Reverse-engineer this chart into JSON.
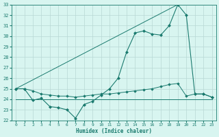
{
  "xlabel": "Humidex (Indice chaleur)",
  "x": [
    0,
    1,
    2,
    3,
    4,
    5,
    6,
    7,
    8,
    9,
    10,
    11,
    12,
    13,
    14,
    15,
    16,
    17,
    18,
    19,
    20,
    21,
    22,
    23
  ],
  "line_straight": [
    25.0,
    null,
    null,
    null,
    null,
    null,
    null,
    null,
    null,
    null,
    null,
    null,
    null,
    null,
    null,
    null,
    null,
    null,
    null,
    33.0,
    null,
    null,
    null,
    null
  ],
  "line_peak": [
    25.0,
    25.0,
    23.9,
    24.1,
    23.3,
    23.2,
    23.0,
    22.2,
    23.5,
    23.8,
    24.4,
    25.0,
    26.0,
    28.5,
    30.3,
    30.5,
    30.2,
    30.1,
    null,
    null,
    null,
    null,
    null,
    null
  ],
  "line_upper": [
    25.0,
    null,
    null,
    null,
    null,
    null,
    null,
    null,
    null,
    null,
    null,
    null,
    null,
    null,
    null,
    null,
    null,
    32.0,
    null,
    33.0,
    32.0,
    null,
    null,
    null
  ],
  "line_marked": [
    25.0,
    25.0,
    23.9,
    24.1,
    23.3,
    23.2,
    23.0,
    22.2,
    23.5,
    23.8,
    24.4,
    25.0,
    26.0,
    28.5,
    30.3,
    30.5,
    30.2,
    30.1,
    31.0,
    33.0,
    32.0,
    24.5,
    24.5,
    24.2
  ],
  "line_flat": [
    24.0,
    24.0,
    24.0,
    24.0,
    24.0,
    24.0,
    24.0,
    24.0,
    24.0,
    24.0,
    24.0,
    24.0,
    24.0,
    24.0,
    24.0,
    24.0,
    24.0,
    24.0,
    24.0,
    24.0,
    24.0,
    24.0,
    24.0,
    24.0
  ],
  "line_mid": [
    25.0,
    25.0,
    24.8,
    24.5,
    24.4,
    24.3,
    24.3,
    24.2,
    24.3,
    24.4,
    24.5,
    24.5,
    24.6,
    24.7,
    24.8,
    24.9,
    25.0,
    25.2,
    25.4,
    25.5,
    24.3,
    24.5,
    24.5,
    24.2
  ],
  "color": "#1a7a6e",
  "bg_color": "#d8f5f0",
  "grid_color": "#b8d8d4",
  "ylim": [
    22,
    33
  ],
  "yticks": [
    22,
    23,
    24,
    25,
    26,
    27,
    28,
    29,
    30,
    31,
    32,
    33
  ],
  "xticks": [
    0,
    1,
    2,
    3,
    4,
    5,
    6,
    7,
    8,
    9,
    10,
    11,
    12,
    13,
    14,
    15,
    16,
    17,
    18,
    19,
    20,
    21,
    22,
    23
  ]
}
